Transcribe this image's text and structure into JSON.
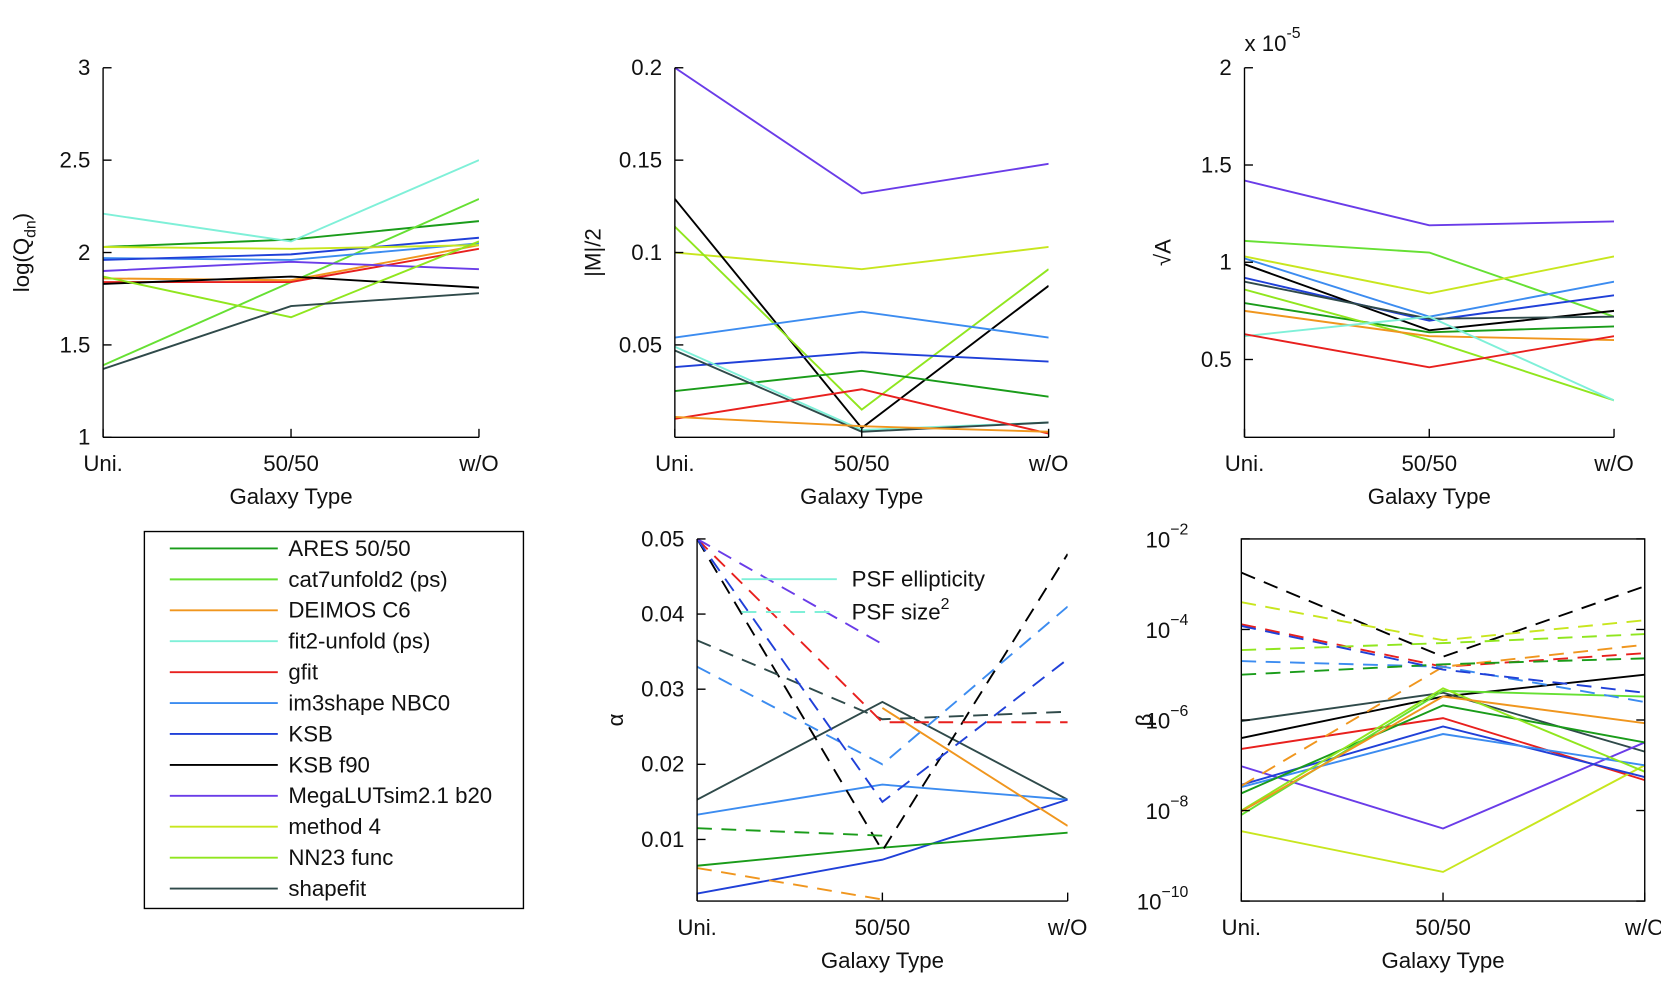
{
  "chart_data": [
    {
      "type": "line",
      "ylabel": "log(Q",
      "ylabel_subscript": "dn",
      "ylabel_suffix": ")",
      "xlabel": "Galaxy Type",
      "categories": [
        "Uni.",
        "50/50",
        "w/O"
      ],
      "ylim": [
        1,
        3
      ],
      "yticks": [
        1,
        1.5,
        2,
        2.5,
        3
      ],
      "legend": "separate box below",
      "series": [
        {
          "name": "ARES 50/50",
          "color": "#1a9c1a",
          "values": [
            2.03,
            2.07,
            2.17
          ]
        },
        {
          "name": "cat7unfold2 (ps)",
          "color": "#66e033",
          "values": [
            1.39,
            1.84,
            2.29
          ]
        },
        {
          "name": "DEIMOS C6",
          "color": "#f0961e",
          "values": [
            1.86,
            1.85,
            2.04
          ]
        },
        {
          "name": "fit2-unfold (ps)",
          "color": "#7ff0d8",
          "values": [
            2.21,
            2.06,
            2.5
          ]
        },
        {
          "name": "gfit",
          "color": "#e8201e",
          "values": [
            1.84,
            1.84,
            2.02
          ]
        },
        {
          "name": "im3shape NBC0",
          "color": "#3c8cf0",
          "values": [
            1.97,
            1.96,
            2.05
          ]
        },
        {
          "name": "KSB",
          "color": "#2040d8",
          "values": [
            1.96,
            1.99,
            2.08
          ]
        },
        {
          "name": "KSB f90",
          "color": "#000000",
          "values": [
            1.83,
            1.87,
            1.81
          ]
        },
        {
          "name": "MegaLUTsim2.1 b20",
          "color": "#6a3ce8",
          "values": [
            1.9,
            1.95,
            1.91
          ]
        },
        {
          "name": "method 4",
          "color": "#c8e61e",
          "values": [
            2.03,
            2.02,
            2.04
          ]
        },
        {
          "name": "NN23 func",
          "color": "#90e61e",
          "values": [
            1.87,
            1.65,
            2.06
          ]
        },
        {
          "name": "shapefit",
          "color": "#2f4a4a",
          "values": [
            1.37,
            1.71,
            1.78
          ]
        }
      ]
    },
    {
      "type": "line",
      "ylabel": "|M|/2",
      "xlabel": "Galaxy Type",
      "categories": [
        "Uni.",
        "50/50",
        "w/O"
      ],
      "ylim": [
        0,
        0.2
      ],
      "yticks": [
        0.05,
        0.1,
        0.15,
        0.2
      ],
      "series": [
        {
          "color": "#6a3ce8",
          "values": [
            0.2,
            0.132,
            0.148
          ]
        },
        {
          "color": "#c8e61e",
          "values": [
            0.1,
            0.091,
            0.103
          ]
        },
        {
          "color": "#000000",
          "values": [
            0.129,
            0.005,
            0.082
          ]
        },
        {
          "color": "#90e61e",
          "values": [
            0.114,
            0.015,
            0.091
          ]
        },
        {
          "color": "#3c8cf0",
          "values": [
            0.054,
            0.068,
            0.054
          ]
        },
        {
          "color": "#2040d8",
          "values": [
            0.038,
            0.046,
            0.041
          ]
        },
        {
          "color": "#1a9c1a",
          "values": [
            0.025,
            0.036,
            0.022
          ]
        },
        {
          "color": "#7ff0d8",
          "values": [
            0.049,
            0.004,
            0.008
          ]
        },
        {
          "color": "#2f4a4a",
          "values": [
            0.047,
            0.003,
            0.008
          ]
        },
        {
          "color": "#e8201e",
          "values": [
            0.01,
            0.026,
            0.002
          ]
        },
        {
          "color": "#f0961e",
          "values": [
            0.011,
            0.006,
            0.003
          ]
        }
      ]
    },
    {
      "type": "line",
      "ylabel": "√A",
      "xlabel": "Galaxy Type",
      "multiplier": "x 10",
      "multiplier_exponent": "-5",
      "categories": [
        "Uni.",
        "50/50",
        "w/O"
      ],
      "ylim": [
        0.1,
        2
      ],
      "yticks": [
        0.5,
        1,
        1.5,
        2
      ],
      "series": [
        {
          "color": "#6a3ce8",
          "values": [
            1.42,
            1.19,
            1.21
          ]
        },
        {
          "color": "#66e033",
          "values": [
            1.11,
            1.05,
            0.72
          ]
        },
        {
          "color": "#c8e61e",
          "values": [
            1.03,
            0.84,
            1.03
          ]
        },
        {
          "color": "#3c8cf0",
          "values": [
            1.02,
            0.72,
            0.9
          ]
        },
        {
          "color": "#2040d8",
          "values": [
            0.92,
            0.7,
            0.83
          ]
        },
        {
          "color": "#000000",
          "values": [
            0.99,
            0.65,
            0.75
          ]
        },
        {
          "color": "#2f4a4a",
          "values": [
            0.9,
            0.71,
            0.72
          ]
        },
        {
          "color": "#1a9c1a",
          "values": [
            0.79,
            0.64,
            0.67
          ]
        },
        {
          "color": "#90e61e",
          "values": [
            0.86,
            0.6,
            0.29
          ]
        },
        {
          "color": "#f0961e",
          "values": [
            0.75,
            0.62,
            0.6
          ]
        },
        {
          "color": "#7ff0d8",
          "values": [
            0.62,
            0.72,
            0.29
          ]
        },
        {
          "color": "#e8201e",
          "values": [
            0.63,
            0.46,
            0.62
          ]
        }
      ]
    },
    {
      "type": "line",
      "ylabel": "α",
      "xlabel": "Galaxy Type",
      "categories": [
        "Uni.",
        "50/50",
        "w/O"
      ],
      "ylim": [
        0.0018,
        0.05
      ],
      "yticks": [
        0.01,
        0.02,
        0.03,
        0.04,
        0.05
      ],
      "legend_entries": [
        {
          "name": "PSF ellipticity",
          "color": "#7ff0d8"
        },
        {
          "name": "PSF size",
          "superscript": "2",
          "color": "#7ff0d8",
          "dash": true
        }
      ],
      "series": [
        {
          "color": "#2f4a4a",
          "values": [
            0.0153,
            0.0283,
            0.0153
          ]
        },
        {
          "color": "#3c8cf0",
          "values": [
            0.0133,
            0.0173,
            0.0153
          ]
        },
        {
          "color": "#2040d8",
          "values": [
            0.0028,
            0.0073,
            0.0153
          ]
        },
        {
          "color": "#1a9c1a",
          "values": [
            0.0065,
            0.0089,
            0.0109
          ]
        },
        {
          "color": "#f0961e",
          "values": [
            null,
            0.0275,
            0.0118
          ]
        },
        {
          "color": "#000000",
          "dash": true,
          "values": [
            0.05,
            0.0085,
            0.048
          ]
        },
        {
          "color": "#2f4a4a",
          "dash": true,
          "values": [
            0.0365,
            0.026,
            0.027
          ]
        },
        {
          "color": "#e8201e",
          "dash": true,
          "values": [
            0.05,
            0.0256,
            0.0256
          ]
        },
        {
          "color": "#3c8cf0",
          "dash": true,
          "values": [
            0.033,
            0.02,
            0.041
          ]
        },
        {
          "color": "#2040d8",
          "dash": true,
          "values": [
            0.05,
            0.015,
            0.034
          ]
        },
        {
          "color": "#6a3ce8",
          "dash": true,
          "values": [
            0.05,
            0.036,
            null
          ]
        },
        {
          "color": "#1a9c1a",
          "dash": true,
          "values": [
            0.0115,
            0.0105,
            null
          ]
        },
        {
          "color": "#f0961e",
          "dash": true,
          "values": [
            0.0062,
            0.002,
            null
          ]
        }
      ]
    },
    {
      "type": "line",
      "ylabel": "β",
      "xlabel": "Galaxy Type",
      "categories": [
        "Uni.",
        "50/50",
        "w/O"
      ],
      "log_scale": true,
      "box": true,
      "ylim": [
        1e-10,
        0.01
      ],
      "yticks": [
        {
          "value": 1e-10,
          "label": "10",
          "exponent": "−10"
        },
        {
          "value": 1e-08,
          "label": "10",
          "exponent": "−8"
        },
        {
          "value": 1e-06,
          "label": "10",
          "exponent": "−6"
        },
        {
          "value": 0.0001,
          "label": "10",
          "exponent": "−4"
        },
        {
          "value": 0.01,
          "label": "10",
          "exponent": "−2"
        }
      ],
      "series": [
        {
          "color": "#000000",
          "values": [
            4e-07,
            3.3e-06,
            1e-05
          ]
        },
        {
          "color": "#2f4a4a",
          "values": [
            9.5e-07,
            4e-06,
            2e-07
          ]
        },
        {
          "color": "#e8201e",
          "values": [
            2.3e-07,
            1.1e-06,
            4.7e-08
          ]
        },
        {
          "color": "#c8e61e",
          "values": [
            3.5e-09,
            4.4e-10,
            1e-07
          ]
        },
        {
          "color": "#6a3ce8",
          "values": [
            9.5e-08,
            4e-09,
            3.2e-07
          ]
        },
        {
          "color": "#2040d8",
          "values": [
            3.7e-08,
            7.2e-07,
            5.5e-08
          ]
        },
        {
          "color": "#3c8cf0",
          "values": [
            3.3e-08,
            4.9e-07,
            1e-07
          ]
        },
        {
          "color": "#1a9c1a",
          "values": [
            2.4e-08,
            2.1e-06,
            3.2e-07
          ]
        },
        {
          "color": "#66e033",
          "values": [
            8e-09,
            4.4e-06,
            3.3e-06
          ]
        },
        {
          "color": "#90e61e",
          "values": [
            1e-08,
            5e-06,
            7.2e-08
          ]
        },
        {
          "color": "#f0961e",
          "values": [
            9.5e-09,
            3.3e-06,
            8.5e-07
          ]
        },
        {
          "color": "#000000",
          "dash": true,
          "values": [
            0.0018,
            2.5e-05,
            0.0009
          ]
        },
        {
          "color": "#c8e61e",
          "dash": true,
          "values": [
            0.0004,
            5.8e-05,
            0.00016
          ]
        },
        {
          "color": "#e8201e",
          "dash": true,
          "values": [
            0.00013,
            1.5e-05,
            3e-05
          ]
        },
        {
          "color": "#90e61e",
          "dash": true,
          "values": [
            3.5e-05,
            5e-05,
            7.9e-05
          ]
        },
        {
          "color": "#f0961e",
          "dash": true,
          "values": [
            3.5e-08,
            1.5e-05,
            4.6e-05
          ]
        },
        {
          "color": "#3c8cf0",
          "dash": true,
          "values": [
            2e-05,
            1.5e-05,
            2.5e-06
          ]
        },
        {
          "color": "#1a9c1a",
          "dash": true,
          "values": [
            1e-05,
            1.7e-05,
            2.3e-05
          ]
        },
        {
          "color": "#2040d8",
          "dash": true,
          "values": [
            0.00012,
            1.3e-05,
            4e-06
          ]
        }
      ]
    }
  ]
}
